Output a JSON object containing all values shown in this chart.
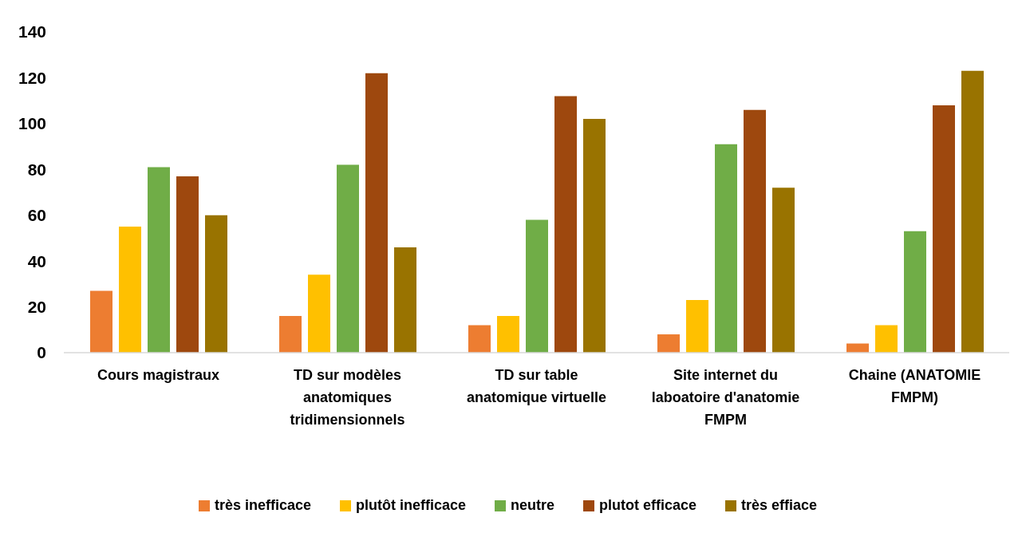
{
  "chart_data": {
    "type": "bar",
    "categories": [
      "Cours magistraux",
      "TD sur modèles anatomiques tridimensionnels",
      "TD sur table anatomique virtuelle",
      "Site internet du laboatoire d'anatomie FMPM",
      "Chaine (ANATOMIE FMPM)"
    ],
    "series": [
      {
        "name": "très inefficace",
        "color": "#ed7d31",
        "values": [
          27,
          16,
          12,
          8,
          4
        ]
      },
      {
        "name": "plutôt inefficace",
        "color": "#ffc000",
        "values": [
          55,
          34,
          16,
          23,
          12
        ]
      },
      {
        "name": "neutre",
        "color": "#70ad47",
        "values": [
          81,
          82,
          58,
          91,
          53
        ]
      },
      {
        "name": "plutot efficace",
        "color": "#9e480e",
        "values": [
          77,
          122,
          112,
          106,
          108
        ]
      },
      {
        "name": "très effiace",
        "color": "#997300",
        "values": [
          60,
          46,
          102,
          72,
          123
        ]
      }
    ],
    "ylim": [
      0,
      140
    ],
    "yticks": [
      0,
      20,
      40,
      60,
      80,
      100,
      120,
      140
    ],
    "legend": "bottom"
  }
}
